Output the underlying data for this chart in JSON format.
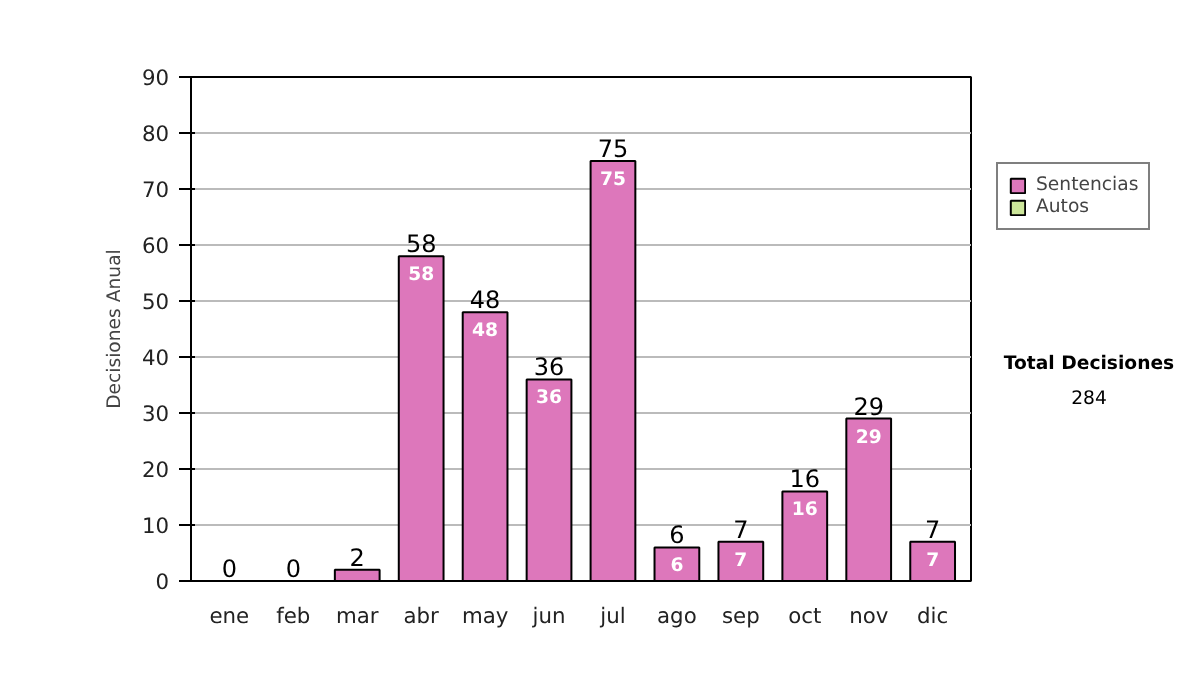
{
  "chart_data": {
    "type": "bar",
    "ylabel": "Decisiones Anual",
    "categories": [
      "ene",
      "feb",
      "mar",
      "abr",
      "may",
      "jun",
      "jul",
      "ago",
      "sep",
      "oct",
      "nov",
      "dic"
    ],
    "series": [
      {
        "name": "Sentencias",
        "color": "#dd77bb",
        "values": [
          0,
          0,
          2,
          58,
          48,
          36,
          75,
          6,
          7,
          16,
          29,
          7
        ],
        "value_labels": [
          null,
          null,
          null,
          "58",
          "48",
          "36",
          "75",
          "6",
          "7",
          "16",
          "29",
          "7"
        ]
      },
      {
        "name": "Autos",
        "color": "#cce69a",
        "values": [
          0,
          0,
          0,
          0,
          0,
          0,
          0,
          0,
          0,
          0,
          0,
          0
        ]
      }
    ],
    "stacked": true,
    "totals": [
      "0",
      "0",
      "2",
      "58",
      "48",
      "36",
      "75",
      "6",
      "7",
      "16",
      "29",
      "7"
    ],
    "ylim": [
      0,
      90
    ],
    "yticks": [
      0,
      10,
      20,
      30,
      40,
      50,
      60,
      70,
      80,
      90
    ],
    "grid": "y",
    "legend": "right",
    "annotations": [
      "Total Decisiones",
      "284"
    ]
  }
}
